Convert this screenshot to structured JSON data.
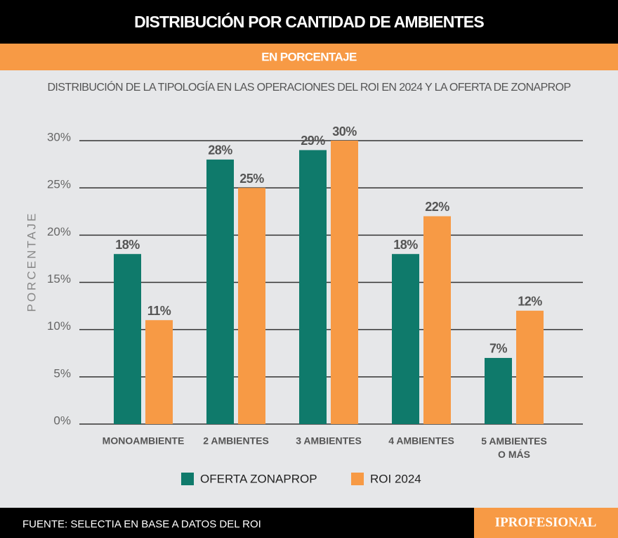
{
  "header": {
    "title": "DISTRIBUCIÓN POR CANTIDAD DE AMBIENTES",
    "subtitle": "EN PORCENTAJE"
  },
  "chart_data": {
    "type": "bar",
    "title": "DISTRIBUCIÓN DE LA TIPOLOGÍA EN LAS OPERACIONES DEL ROI EN 2024 Y LA OFERTA DE ZONAPROP",
    "y_label": "PORCENTAJE",
    "categories": [
      "MONOAMBIENTE",
      "2 AMBIENTES",
      "3 AMBIENTES",
      "4 AMBIENTES",
      "5 AMBIENTES\nO MÁS"
    ],
    "series": [
      {
        "name": "OFERTA ZONAPROP",
        "color": "#0f7a6b",
        "values": [
          18,
          28,
          29,
          18,
          7
        ],
        "value_labels": [
          "18%",
          "28%",
          "29%",
          "18%",
          "7%"
        ]
      },
      {
        "name": "ROI 2024",
        "color": "#f79a45",
        "values": [
          11,
          25,
          30,
          22,
          12
        ],
        "value_labels": [
          "11%",
          "25%",
          "30%",
          "22%",
          "12%"
        ]
      }
    ],
    "ylim": [
      0,
      30
    ],
    "yticks": [
      {
        "value": 0,
        "label": "0%"
      },
      {
        "value": 5,
        "label": "5%"
      },
      {
        "value": 10,
        "label": "10%"
      },
      {
        "value": 15,
        "label": "15%"
      },
      {
        "value": 20,
        "label": "20%"
      },
      {
        "value": 25,
        "label": "25%"
      },
      {
        "value": 30,
        "label": "30%"
      }
    ],
    "grid": true
  },
  "footer": {
    "source": "FUENTE: SELECTIA EN BASE A DATOS DEL ROI",
    "brand": "IPROFESIONAL"
  }
}
